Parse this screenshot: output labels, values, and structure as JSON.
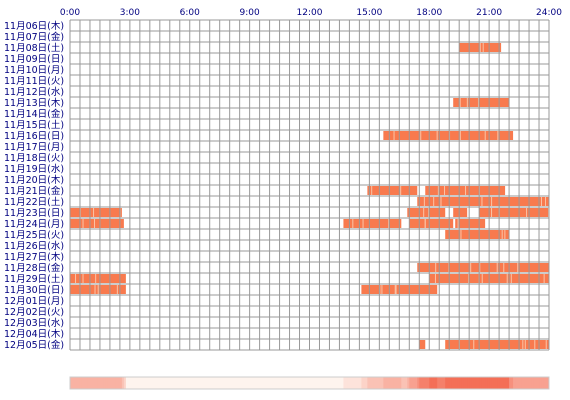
{
  "chart_data": {
    "type": "heatmap",
    "title": "",
    "xlabel": "",
    "ylabel": "",
    "xlim": [
      0,
      24
    ],
    "x_ticks": [
      "0:00",
      "3:00",
      "6:00",
      "9:00",
      "12:00",
      "15:00",
      "18:00",
      "21:00",
      "24:00"
    ],
    "rows": [
      "11月06日(木)",
      "11月07日(金)",
      "11月08日(土)",
      "11月09日(日)",
      "11月10日(月)",
      "11月11日(火)",
      "11月12日(水)",
      "11月13日(木)",
      "11月14日(金)",
      "11月15日(土)",
      "11月16日(日)",
      "11月17日(月)",
      "11月18日(火)",
      "11月19日(水)",
      "11月20日(木)",
      "11月21日(金)",
      "11月22日(土)",
      "11月23日(日)",
      "11月24日(月)",
      "11月25日(火)",
      "11月26日(水)",
      "11月27日(木)",
      "11月28日(金)",
      "11月29日(土)",
      "11月30日(日)",
      "12月01日(月)",
      "12月02日(火)",
      "12月03日(水)",
      "12月04日(木)",
      "12月05日(金)"
    ],
    "segments": [
      [],
      [],
      [
        [
          19.5,
          21.6
        ]
      ],
      [],
      [],
      [],
      [],
      [
        [
          19.2,
          22.0
        ]
      ],
      [],
      [],
      [
        [
          15.7,
          22.2
        ]
      ],
      [],
      [],
      [],
      [],
      [
        [
          14.9,
          17.4
        ],
        [
          17.8,
          21.8
        ]
      ],
      [
        [
          17.4,
          24.0
        ]
      ],
      [
        [
          0.0,
          2.6
        ],
        [
          16.9,
          18.8
        ],
        [
          19.2,
          19.9
        ],
        [
          20.5,
          24.0
        ]
      ],
      [
        [
          0.0,
          2.7
        ],
        [
          13.7,
          16.6
        ],
        [
          17.0,
          19.2
        ],
        [
          19.3,
          20.8
        ]
      ],
      [
        [
          18.8,
          22.0
        ]
      ],
      [],
      [],
      [
        [
          17.4,
          24.0
        ]
      ],
      [
        [
          0.0,
          2.8
        ],
        [
          18.0,
          24.0
        ]
      ],
      [
        [
          0.0,
          2.8
        ],
        [
          14.6,
          18.4
        ]
      ],
      [],
      [],
      [],
      [],
      [
        [
          17.5,
          17.8
        ],
        [
          18.8,
          24.0
        ]
      ]
    ],
    "colors": {
      "cell_bg": "#ffffff",
      "grid": "#999999",
      "bar": "#f87a4e",
      "bar_light": "#fbc4a6",
      "label": "#000080",
      "summary_light": "#fef0e8",
      "summary_dark": "#f46f57"
    },
    "summary_strip": true
  }
}
